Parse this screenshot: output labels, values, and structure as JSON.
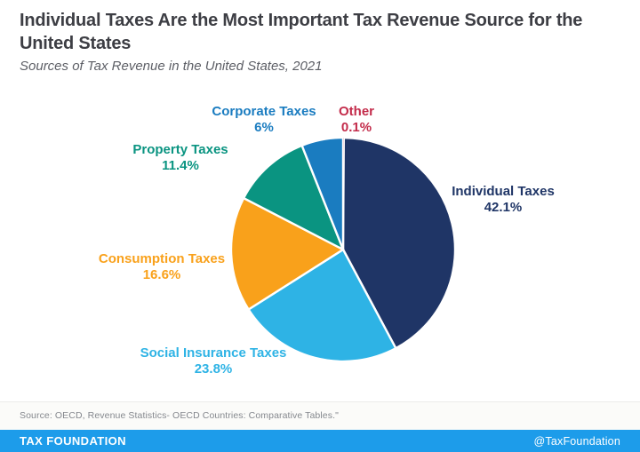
{
  "header": {
    "title": "Individual Taxes Are the Most Important Tax Revenue Source for the United States",
    "subtitle": "Sources of Tax Revenue in the United States, 2021"
  },
  "chart_data": {
    "type": "pie",
    "title": "Individual Taxes Are the Most Important Tax Revenue Source for the United States",
    "subtitle": "Sources of Tax Revenue in the United States, 2021",
    "unit": "%",
    "rotation_start_deg": -90,
    "direction": "clockwise",
    "legend_position": "around-slices",
    "slices": [
      {
        "id": "other",
        "label": "Other",
        "value": 0.1,
        "value_label": "0.1%",
        "color": "#c32b4a"
      },
      {
        "id": "individual-taxes",
        "label": "Individual Taxes",
        "value": 42.1,
        "value_label": "42.1%",
        "color": "#1f3566"
      },
      {
        "id": "social-insurance-taxes",
        "label": "Social Insurance Taxes",
        "value": 23.8,
        "value_label": "23.8%",
        "color": "#2eb3e5"
      },
      {
        "id": "consumption-taxes",
        "label": "Consumption Taxes",
        "value": 16.6,
        "value_label": "16.6%",
        "color": "#f9a11b"
      },
      {
        "id": "property-taxes",
        "label": "Property Taxes",
        "value": 11.4,
        "value_label": "11.4%",
        "color": "#0a9481"
      },
      {
        "id": "corporate-taxes",
        "label": "Corporate Taxes",
        "value": 6,
        "value_label": "6%",
        "color": "#1a7cc0"
      }
    ]
  },
  "footer": {
    "source": "Source: OECD, Revenue Statistics- OECD Countries: Comparative Tables.\"",
    "brand": "TAX FOUNDATION",
    "handle": "@TaxFoundation",
    "bar_color": "#1d9cea"
  }
}
